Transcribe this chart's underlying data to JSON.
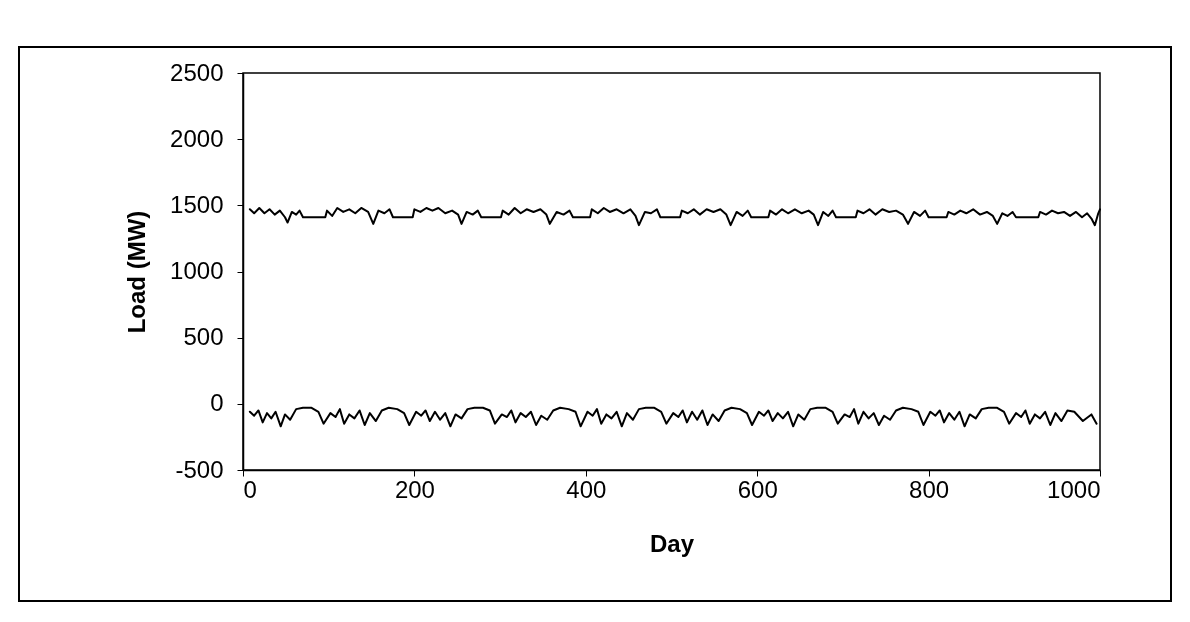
{
  "chart_data": {
    "type": "line",
    "xlabel": "Day",
    "ylabel": "Load (MW)",
    "xlim": [
      0,
      1000
    ],
    "xticks": [
      0,
      200,
      400,
      600,
      800,
      1000
    ],
    "ylim": [
      -500,
      2500
    ],
    "yticks": [
      -500,
      0,
      500,
      1000,
      1500,
      2000,
      2500
    ],
    "grid": false,
    "marker": "none",
    "line_style": "solid",
    "series": [
      {
        "color": "#000000",
        "x": [
          8,
          13,
          19,
          25,
          31,
          37,
          43,
          49,
          52,
          57,
          62,
          66,
          70,
          96,
          98,
          104,
          110,
          117,
          124,
          131,
          138,
          146,
          152,
          158,
          165,
          171,
          175,
          198,
          200,
          207,
          214,
          221,
          228,
          236,
          244,
          251,
          255,
          261,
          268,
          274,
          278,
          301,
          303,
          310,
          317,
          324,
          331,
          339,
          347,
          354,
          358,
          366,
          374,
          381,
          385,
          405,
          407,
          414,
          421,
          428,
          436,
          444,
          452,
          458,
          462,
          469,
          476,
          483,
          487,
          510,
          512,
          519,
          526,
          533,
          541,
          549,
          557,
          564,
          569,
          576,
          583,
          589,
          593,
          613,
          615,
          622,
          629,
          636,
          644,
          652,
          660,
          666,
          671,
          677,
          683,
          688,
          692,
          715,
          717,
          724,
          731,
          738,
          746,
          754,
          762,
          770,
          776,
          783,
          790,
          796,
          800,
          821,
          823,
          830,
          837,
          844,
          852,
          860,
          868,
          875,
          880,
          886,
          892,
          898,
          902,
          928,
          930,
          937,
          944,
          951,
          958,
          965,
          972,
          979,
          985,
          990,
          994,
          998,
          1000
        ],
        "values": [
          1470,
          1440,
          1480,
          1440,
          1470,
          1430,
          1460,
          1410,
          1370,
          1450,
          1430,
          1460,
          1410,
          1410,
          1460,
          1420,
          1480,
          1450,
          1470,
          1440,
          1480,
          1450,
          1360,
          1460,
          1440,
          1470,
          1410,
          1410,
          1470,
          1450,
          1480,
          1460,
          1480,
          1440,
          1460,
          1430,
          1360,
          1450,
          1430,
          1460,
          1410,
          1410,
          1460,
          1430,
          1480,
          1440,
          1470,
          1450,
          1470,
          1430,
          1360,
          1450,
          1430,
          1460,
          1410,
          1410,
          1470,
          1440,
          1480,
          1450,
          1470,
          1440,
          1470,
          1420,
          1350,
          1450,
          1440,
          1470,
          1410,
          1410,
          1460,
          1440,
          1470,
          1430,
          1470,
          1450,
          1470,
          1430,
          1350,
          1450,
          1420,
          1460,
          1410,
          1410,
          1460,
          1430,
          1470,
          1440,
          1470,
          1440,
          1460,
          1430,
          1350,
          1450,
          1420,
          1460,
          1410,
          1410,
          1460,
          1440,
          1470,
          1430,
          1470,
          1450,
          1460,
          1430,
          1360,
          1450,
          1420,
          1460,
          1410,
          1410,
          1450,
          1430,
          1460,
          1440,
          1470,
          1430,
          1450,
          1420,
          1360,
          1440,
          1420,
          1450,
          1410,
          1410,
          1450,
          1430,
          1460,
          1440,
          1450,
          1420,
          1450,
          1410,
          1440,
          1400,
          1350,
          1440,
          1470
        ]
      },
      {
        "color": "#000000",
        "x": [
          8,
          13,
          18,
          23,
          28,
          33,
          38,
          44,
          49,
          55,
          62,
          70,
          80,
          88,
          94,
          102,
          108,
          113,
          118,
          124,
          130,
          136,
          142,
          148,
          155,
          162,
          170,
          180,
          188,
          194,
          202,
          208,
          213,
          218,
          224,
          230,
          236,
          242,
          248,
          255,
          262,
          270,
          280,
          288,
          294,
          302,
          308,
          313,
          318,
          324,
          330,
          336,
          342,
          348,
          355,
          362,
          370,
          380,
          388,
          394,
          402,
          408,
          413,
          418,
          424,
          430,
          436,
          442,
          448,
          455,
          462,
          470,
          480,
          488,
          494,
          502,
          508,
          513,
          518,
          524,
          530,
          536,
          542,
          548,
          555,
          562,
          570,
          580,
          588,
          594,
          602,
          608,
          613,
          618,
          624,
          630,
          636,
          642,
          648,
          655,
          662,
          670,
          680,
          688,
          694,
          702,
          708,
          713,
          718,
          724,
          730,
          736,
          742,
          748,
          755,
          762,
          770,
          780,
          788,
          794,
          802,
          808,
          813,
          818,
          824,
          830,
          836,
          842,
          848,
          855,
          862,
          870,
          880,
          888,
          894,
          902,
          908,
          913,
          918,
          924,
          930,
          936,
          942,
          948,
          955,
          962,
          970,
          980,
          990,
          996
        ],
        "values": [
          -60,
          -90,
          -50,
          -140,
          -70,
          -110,
          -60,
          -170,
          -80,
          -120,
          -40,
          -30,
          -30,
          -60,
          -150,
          -70,
          -100,
          -40,
          -150,
          -80,
          -110,
          -50,
          -160,
          -70,
          -130,
          -50,
          -30,
          -40,
          -70,
          -160,
          -60,
          -90,
          -50,
          -130,
          -60,
          -120,
          -70,
          -170,
          -80,
          -110,
          -40,
          -30,
          -30,
          -50,
          -150,
          -80,
          -100,
          -50,
          -140,
          -70,
          -100,
          -60,
          -160,
          -90,
          -120,
          -50,
          -30,
          -40,
          -60,
          -170,
          -60,
          -90,
          -40,
          -150,
          -80,
          -110,
          -60,
          -170,
          -70,
          -120,
          -40,
          -30,
          -30,
          -60,
          -150,
          -70,
          -100,
          -50,
          -140,
          -60,
          -120,
          -50,
          -160,
          -80,
          -130,
          -50,
          -30,
          -40,
          -70,
          -160,
          -60,
          -90,
          -50,
          -130,
          -70,
          -110,
          -60,
          -170,
          -80,
          -120,
          -40,
          -30,
          -30,
          -60,
          -150,
          -80,
          -100,
          -40,
          -150,
          -60,
          -110,
          -70,
          -160,
          -90,
          -120,
          -50,
          -30,
          -40,
          -60,
          -160,
          -60,
          -90,
          -50,
          -140,
          -70,
          -120,
          -60,
          -170,
          -80,
          -110,
          -40,
          -30,
          -30,
          -60,
          -150,
          -70,
          -100,
          -50,
          -150,
          -80,
          -110,
          -60,
          -160,
          -70,
          -130,
          -50,
          -60,
          -130,
          -80,
          -150
        ]
      }
    ]
  }
}
